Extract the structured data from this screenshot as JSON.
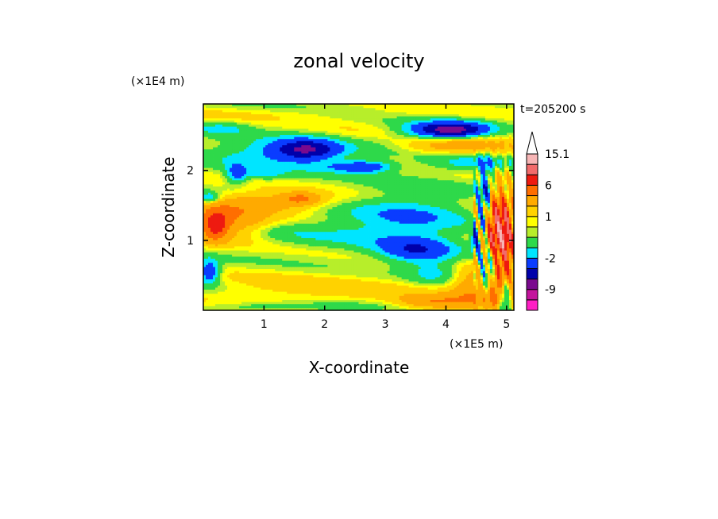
{
  "chart_data": {
    "type": "heatmap",
    "title": "zonal velocity",
    "xlabel": "X-coordinate",
    "ylabel": "Z-coordinate",
    "x_scale_label": "(×1E5 m)",
    "y_scale_label": "(×1E4 m)",
    "time_label": "t=205200 s",
    "xlim": [
      0,
      5.12
    ],
    "ylim": [
      0,
      2.95
    ],
    "x_ticks": [
      1,
      2,
      3,
      4,
      5
    ],
    "y_ticks": [
      1,
      2
    ],
    "colorbar": {
      "levels": [
        {
          "min": null,
          "max": -12,
          "color": "#ff1fc4"
        },
        {
          "min": -12,
          "max": -9,
          "color": "#c3149c"
        },
        {
          "min": -9,
          "max": -6,
          "color": "#7a0a8e"
        },
        {
          "min": -6,
          "max": -4,
          "color": "#0000aa"
        },
        {
          "min": -4,
          "max": -2,
          "color": "#0a3cff"
        },
        {
          "min": -2,
          "max": -1,
          "color": "#00e5ff"
        },
        {
          "min": -1,
          "max": 0,
          "color": "#2ed94a"
        },
        {
          "min": 0,
          "max": 0.5,
          "color": "#b7ee2a"
        },
        {
          "min": 0.5,
          "max": 1,
          "color": "#ffff00"
        },
        {
          "min": 1,
          "max": 2,
          "color": "#ffd200"
        },
        {
          "min": 2,
          "max": 4,
          "color": "#ffaa00"
        },
        {
          "min": 4,
          "max": 6,
          "color": "#ff6e00"
        },
        {
          "min": 6,
          "max": 9,
          "color": "#ee1a10"
        },
        {
          "min": 9,
          "max": 12,
          "color": "#f26b6b"
        },
        {
          "min": 12,
          "max": 15.1,
          "color": "#f7b6b6"
        }
      ],
      "tick_labels": [
        "15.1",
        "6",
        "1",
        "-2",
        "-9"
      ],
      "tick_values": [
        15.1,
        6,
        1,
        -2,
        -9
      ],
      "extend": "max"
    },
    "features": [
      {
        "x": 0.5,
        "z": 2.8,
        "value": 0.5,
        "sx": 3.0,
        "sz": 0.06
      },
      {
        "x": 0.4,
        "z": 1.3,
        "value": 3.5,
        "sx": 0.45,
        "sz": 0.18
      },
      {
        "x": 0.2,
        "z": 1.2,
        "value": 5.0,
        "sx": 0.15,
        "sz": 0.15
      },
      {
        "x": 1.2,
        "z": 1.55,
        "value": 2.5,
        "sx": 0.7,
        "sz": 0.1
      },
      {
        "x": 1.6,
        "z": 1.6,
        "value": 3.0,
        "sx": 0.2,
        "sz": 0.06
      },
      {
        "x": 1.7,
        "z": 2.3,
        "value": -5.0,
        "sx": 0.35,
        "sz": 0.1
      },
      {
        "x": 1.3,
        "z": 2.25,
        "value": -2.5,
        "sx": 0.8,
        "sz": 0.14
      },
      {
        "x": 0.55,
        "z": 1.95,
        "value": -3.0,
        "sx": 0.12,
        "sz": 0.1
      },
      {
        "x": 1.0,
        "z": 1.95,
        "value": -1.5,
        "sx": 0.25,
        "sz": 0.06
      },
      {
        "x": 0.1,
        "z": 1.6,
        "value": -3.0,
        "sx": 0.12,
        "sz": 0.06
      },
      {
        "x": 0.1,
        "z": 0.55,
        "value": -4.0,
        "sx": 0.12,
        "sz": 0.12
      },
      {
        "x": 0.3,
        "z": 2.6,
        "value": -1.5,
        "sx": 0.3,
        "sz": 0.06
      },
      {
        "x": 2.7,
        "z": 2.05,
        "value": -3.0,
        "sx": 0.3,
        "sz": 0.06
      },
      {
        "x": 2.3,
        "z": 2.05,
        "value": -1.5,
        "sx": 0.45,
        "sz": 0.06
      },
      {
        "x": 2.6,
        "z": 2.6,
        "value": 0.3,
        "sx": 0.5,
        "sz": 0.1
      },
      {
        "x": 2.9,
        "z": 1.3,
        "value": -1.2,
        "sx": 0.7,
        "sz": 0.25
      },
      {
        "x": 3.6,
        "z": 1.3,
        "value": -1.5,
        "sx": 0.6,
        "sz": 0.3
      },
      {
        "x": 1.5,
        "z": 1.1,
        "value": -0.6,
        "sx": 0.5,
        "sz": 0.12
      },
      {
        "x": 2.5,
        "z": 1.05,
        "value": -0.5,
        "sx": 0.8,
        "sz": 0.18
      },
      {
        "x": 3.5,
        "z": 0.85,
        "value": -3.5,
        "sx": 0.4,
        "sz": 0.12
      },
      {
        "x": 3.8,
        "z": 0.55,
        "value": -1.8,
        "sx": 0.3,
        "sz": 0.12
      },
      {
        "x": 3.0,
        "z": 0.25,
        "value": 0.7,
        "sx": 1.6,
        "sz": 0.2
      },
      {
        "x": 1.2,
        "z": 0.3,
        "value": 0.7,
        "sx": 1.0,
        "sz": 0.15
      },
      {
        "x": 0.9,
        "z": 0.05,
        "value": -1.2,
        "sx": 0.6,
        "sz": 0.05
      },
      {
        "x": 2.2,
        "z": 0.05,
        "value": -1.0,
        "sx": 0.7,
        "sz": 0.05
      },
      {
        "x": 3.8,
        "z": 0.12,
        "value": 3.0,
        "sx": 0.4,
        "sz": 0.07
      },
      {
        "x": 4.1,
        "z": 2.58,
        "value": -5.0,
        "sx": 0.4,
        "sz": 0.07
      },
      {
        "x": 4.0,
        "z": 2.58,
        "value": -2.5,
        "sx": 0.55,
        "sz": 0.1
      },
      {
        "x": 4.2,
        "z": 2.35,
        "value": 2.5,
        "sx": 0.6,
        "sz": 0.08
      },
      {
        "x": 4.4,
        "z": 2.1,
        "value": -1.6,
        "sx": 0.5,
        "sz": 0.08
      },
      {
        "x": 4.8,
        "z": 2.5,
        "value": 0.7,
        "sx": 0.4,
        "sz": 0.1
      },
      {
        "x": 4.8,
        "z": 1.2,
        "value": 7.5,
        "sx": 0.15,
        "sz": 0.35
      },
      {
        "x": 5.0,
        "z": 1.0,
        "value": 6.0,
        "sx": 0.12,
        "sz": 0.4
      },
      {
        "x": 4.65,
        "z": 1.55,
        "value": -5.0,
        "sx": 0.08,
        "sz": 0.35
      },
      {
        "x": 4.5,
        "z": 1.0,
        "value": -3.5,
        "sx": 0.06,
        "sz": 0.12
      },
      {
        "x": 4.7,
        "z": 0.5,
        "value": -4.5,
        "sx": 0.1,
        "sz": 0.2
      },
      {
        "x": 4.95,
        "z": 0.2,
        "value": -5.5,
        "sx": 0.07,
        "sz": 0.18
      },
      {
        "x": 4.85,
        "z": 0.3,
        "value": 5.0,
        "sx": 0.12,
        "sz": 0.2
      },
      {
        "x": 4.45,
        "z": 0.3,
        "value": 3.0,
        "sx": 0.25,
        "sz": 0.2
      }
    ]
  }
}
